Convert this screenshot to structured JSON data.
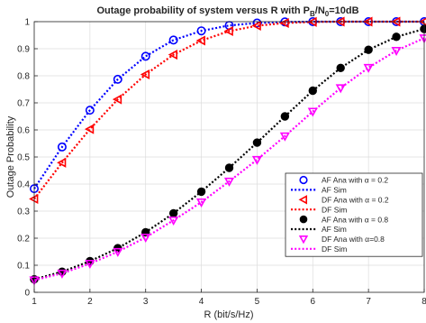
{
  "chart_data": {
    "type": "line",
    "title_parts": [
      "Outage probability of system versus R with P",
      "B",
      "/N",
      "0",
      "=10dB"
    ],
    "xlabel": "R (bit/s/Hz)",
    "ylabel": "Outage Probability",
    "xlim": [
      1,
      8
    ],
    "ylim": [
      0,
      1
    ],
    "xticks": [
      1,
      2,
      3,
      4,
      5,
      6,
      7,
      8
    ],
    "yticks": [
      0,
      0.1,
      0.2,
      0.3,
      0.4,
      0.5,
      0.6,
      0.7,
      0.8,
      0.9,
      1
    ],
    "grid": true,
    "legend_position": "center-right",
    "x": [
      1,
      1.5,
      2,
      2.5,
      3,
      3.5,
      4,
      4.5,
      5,
      5.5,
      6,
      6.5,
      7,
      7.5,
      8
    ],
    "series": [
      {
        "name": "AF Ana with α = 0.2",
        "style": "markers",
        "marker": "circle-open",
        "color": "#0000ff",
        "values": [
          0.383,
          0.537,
          0.673,
          0.787,
          0.872,
          0.932,
          0.966,
          0.986,
          0.995,
          0.999,
          1,
          1,
          1,
          1,
          1
        ]
      },
      {
        "name": "AF Sim",
        "style": "dotted",
        "color": "#0000ff",
        "values": [
          0.383,
          0.537,
          0.673,
          0.787,
          0.872,
          0.932,
          0.966,
          0.986,
          0.995,
          0.999,
          1,
          1,
          1,
          1,
          1
        ]
      },
      {
        "name": "DF Ana with α = 0.2",
        "style": "markers",
        "marker": "triangle-left-open",
        "color": "#ff0000",
        "values": [
          0.345,
          0.479,
          0.603,
          0.713,
          0.805,
          0.878,
          0.93,
          0.965,
          0.985,
          0.995,
          0.999,
          1,
          1,
          1,
          1
        ]
      },
      {
        "name": "DF Sim",
        "style": "dotted",
        "color": "#ff0000",
        "values": [
          0.345,
          0.479,
          0.603,
          0.713,
          0.805,
          0.878,
          0.93,
          0.965,
          0.985,
          0.995,
          0.999,
          1,
          1,
          1,
          1
        ]
      },
      {
        "name": "AF Ana with α = 0.8",
        "style": "markers",
        "marker": "circle-filled",
        "color": "#000000",
        "values": [
          0.048,
          0.076,
          0.115,
          0.163,
          0.222,
          0.292,
          0.372,
          0.46,
          0.553,
          0.65,
          0.745,
          0.829,
          0.896,
          0.944,
          0.973
        ]
      },
      {
        "name": "AF Sim",
        "style": "dotted",
        "color": "#000000",
        "values": [
          0.048,
          0.076,
          0.115,
          0.163,
          0.222,
          0.292,
          0.372,
          0.46,
          0.553,
          0.65,
          0.745,
          0.829,
          0.896,
          0.944,
          0.973
        ]
      },
      {
        "name": "DF Ana with α=0.8",
        "style": "markers",
        "marker": "triangle-down-open",
        "color": "#ff00ff",
        "values": [
          0.045,
          0.07,
          0.106,
          0.15,
          0.203,
          0.266,
          0.333,
          0.41,
          0.49,
          0.577,
          0.668,
          0.755,
          0.83,
          0.893,
          0.939
        ]
      },
      {
        "name": "DF Sim",
        "style": "dotted",
        "color": "#ff00ff",
        "values": [
          0.045,
          0.07,
          0.106,
          0.15,
          0.203,
          0.266,
          0.333,
          0.41,
          0.49,
          0.577,
          0.668,
          0.755,
          0.83,
          0.893,
          0.939
        ]
      }
    ]
  }
}
